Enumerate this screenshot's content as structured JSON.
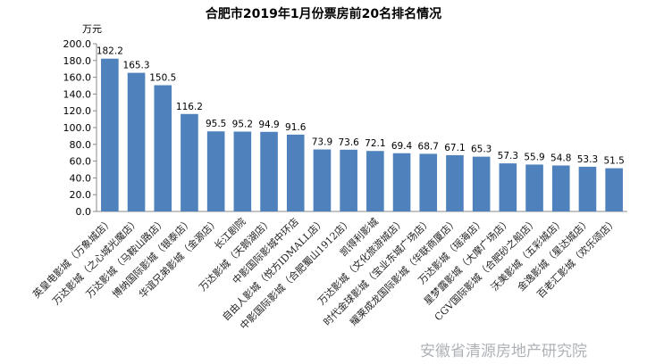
{
  "chart_data": {
    "type": "bar",
    "title": "合肥市2019年1月份票房前20名排名情况",
    "ylabel": "万元",
    "ylim": [
      0,
      200
    ],
    "yticks": [
      "0.0",
      "20.0",
      "40.0",
      "60.0",
      "80.0",
      "100.0",
      "120.0",
      "140.0",
      "160.0",
      "180.0",
      "200.0"
    ],
    "categories": [
      "英皇电影城（万象城店）",
      "万达影城（之心城光魔店）",
      "万达影城（马鞍山路店）",
      "博纳国际影城（银泰店）",
      "华谊兄弟影城（金源店）",
      "长江剧院",
      "万达影城（天鹅湖店）",
      "中影国际影城中环店",
      "自由人影城（悦方IDMALL店）",
      "中影国际影城（合肥蜀山1912店）",
      "凯得利影城",
      "万达影城（文化旅游城店）",
      "时代金球影城（宝业东城广场店）",
      "耀莱成龙国际影城（华联商厦店）",
      "万达影城（瑶海店）",
      "星梦露影城（大摩广场店）",
      "CGV国际影城（合肥砂之船店）",
      "沃美影城（五彩城店）",
      "金逸影城（星达城店）",
      "百老汇影城（欢乐颂店）"
    ],
    "values": [
      182.2,
      165.3,
      150.5,
      116.2,
      95.5,
      95.2,
      94.9,
      91.6,
      73.9,
      73.6,
      72.1,
      69.4,
      68.7,
      67.1,
      65.3,
      57.3,
      55.9,
      54.8,
      53.3,
      51.5
    ],
    "bar_color": "#4f81bd",
    "grid": false
  },
  "watermark": "安徽省清源房地产研究院"
}
